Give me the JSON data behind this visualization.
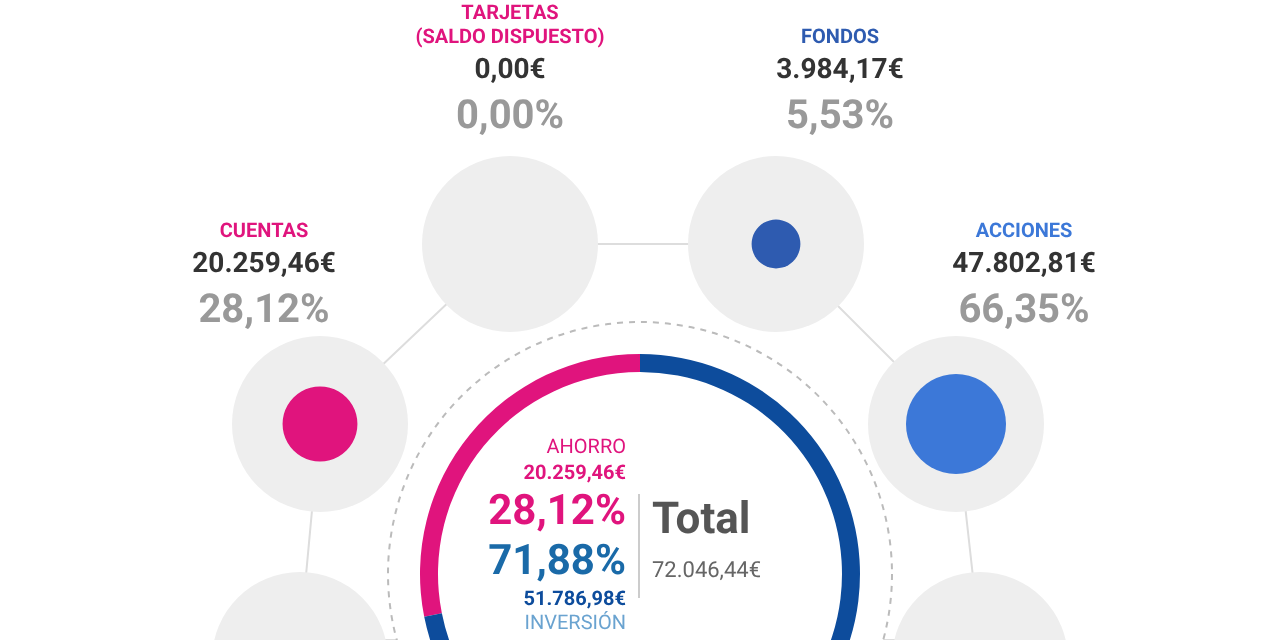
{
  "chart_data": [
    {
      "type": "donut",
      "categories": [
        "AHORRO",
        "INVERSIÓN"
      ],
      "values": [
        20259.46,
        51786.98
      ],
      "colors": [
        "#e0147d",
        "#0d4c9c"
      ],
      "value_labels": [
        "20.259,46€",
        "51.786,98€"
      ],
      "annotations": [
        "28,12%",
        "71,88%",
        "Total",
        "72.046,44€"
      ]
    },
    {
      "type": "other",
      "categories": [
        "TARJETAS\n(SALDO DISPUESTO)",
        "FONDOS",
        "CUENTAS",
        "ACCIONES"
      ],
      "colors": [
        "#e0147d",
        "#2e5bb0",
        "#e0147d",
        "#3c78d8"
      ],
      "series": [
        {
          "values": [
            0,
            3984.17,
            20259.46,
            47802.81
          ],
          "value_labels": [
            "0,00€",
            "3.984,17€",
            "20.259,46€",
            "47.802,81€"
          ]
        },
        {
          "values": [
            0,
            5.53,
            28.12,
            66.35
          ],
          "value_labels": [
            "0,00%",
            "5,53%",
            "28,12%",
            "66,35%"
          ]
        }
      ]
    }
  ]
}
